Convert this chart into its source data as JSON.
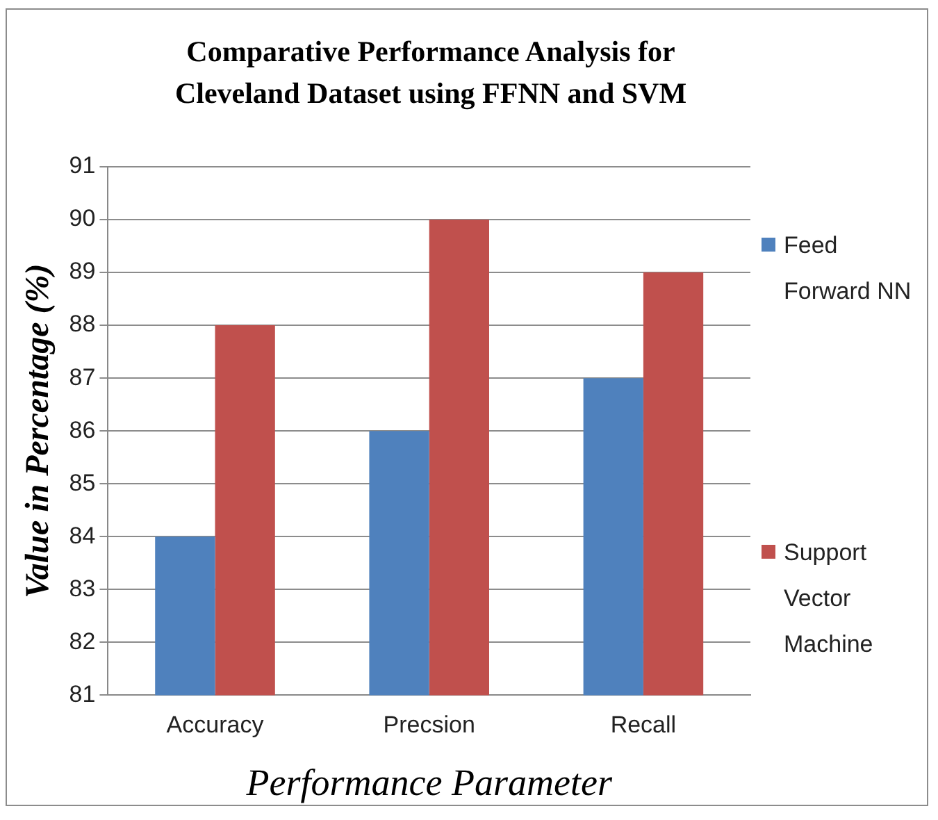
{
  "chart_data": {
    "type": "bar",
    "title": "Comparative Performance Analysis for Cleveland Dataset using FFNN and SVM",
    "xlabel": "Performance Parameter",
    "ylabel": "Value in Percentage (%)",
    "categories": [
      "Accuracy",
      "Precsion",
      "Recall"
    ],
    "series": [
      {
        "name": "Feed Forward NN",
        "color": "#4f81bd",
        "values": [
          84,
          86,
          87
        ]
      },
      {
        "name": "Support Vector Machine",
        "color": "#c0504d",
        "values": [
          88,
          90,
          89
        ]
      }
    ],
    "ylim": [
      81,
      91
    ],
    "yticks": [
      81,
      82,
      83,
      84,
      85,
      86,
      87,
      88,
      89,
      90,
      91
    ],
    "grid": "y",
    "legend": "right"
  }
}
